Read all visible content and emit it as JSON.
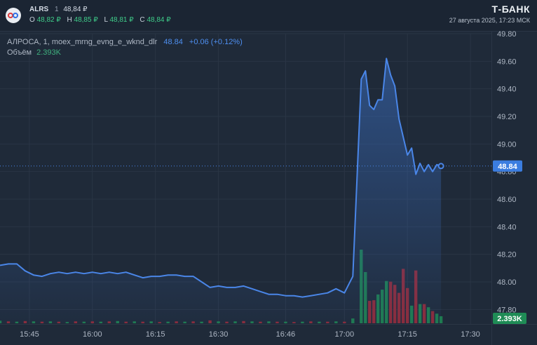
{
  "header": {
    "symbol": "ALRS",
    "interval": "1",
    "last_price": "48,84 ₽",
    "ohlc": [
      {
        "label": "O",
        "value": "48,82 ₽"
      },
      {
        "label": "H",
        "value": "48,85 ₽"
      },
      {
        "label": "L",
        "value": "48,81 ₽"
      },
      {
        "label": "C",
        "value": "48,84 ₽"
      }
    ],
    "brand": "Т-БАНК",
    "datetime": "27 августа 2025, 17:23 МСК"
  },
  "legend": {
    "series_title": "АЛРОСА, 1, moex_mrng_evng_e_wknd_dlr",
    "price": "48.84",
    "change": "+0.06 (+0.12%)",
    "volume_label": "Объём",
    "volume_value": "2.393K"
  },
  "colors": {
    "background": "#1f2a39",
    "line": "#4a86e8",
    "volume_up": "#1e7a4e",
    "volume_down": "#8c2a38",
    "price_tag": "#3b7de0",
    "volume_tag": "#1f8c56"
  },
  "chart_data": {
    "type": "area",
    "xlabel": "",
    "ylabel": "",
    "ylim": [
      47.7,
      49.8
    ],
    "yticks": [
      47.8,
      48.0,
      48.2,
      48.4,
      48.6,
      48.8,
      49.0,
      49.2,
      49.4,
      49.6,
      49.8
    ],
    "ytick_labels": [
      "47.80",
      "48.00",
      "48.20",
      "48.40",
      "48.60",
      "48.80",
      "49.00",
      "49.20",
      "49.40",
      "49.60",
      "49.80"
    ],
    "xlim": [
      "15:38",
      "17:35"
    ],
    "xticks": [
      "15:45",
      "16:00",
      "16:15",
      "16:30",
      "16:46",
      "17:00",
      "17:15",
      "17:30"
    ],
    "x": [
      "15:38",
      "15:40",
      "15:42",
      "15:44",
      "15:46",
      "15:48",
      "15:50",
      "15:52",
      "15:54",
      "15:56",
      "15:58",
      "16:00",
      "16:02",
      "16:04",
      "16:06",
      "16:08",
      "16:10",
      "16:12",
      "16:14",
      "16:16",
      "16:18",
      "16:20",
      "16:22",
      "16:24",
      "16:26",
      "16:28",
      "16:30",
      "16:32",
      "16:34",
      "16:36",
      "16:38",
      "16:40",
      "16:42",
      "16:44",
      "16:46",
      "16:48",
      "16:50",
      "16:52",
      "16:54",
      "16:56",
      "16:58",
      "17:00",
      "17:02",
      "17:04",
      "17:05",
      "17:06",
      "17:07",
      "17:08",
      "17:09",
      "17:10",
      "17:11",
      "17:12",
      "17:13",
      "17:14",
      "17:15",
      "17:16",
      "17:17",
      "17:18",
      "17:19",
      "17:20",
      "17:21",
      "17:22",
      "17:23"
    ],
    "series": [
      {
        "values": [
          48.12,
          48.13,
          48.13,
          48.08,
          48.05,
          48.04,
          48.06,
          48.07,
          48.06,
          48.07,
          48.06,
          48.07,
          48.06,
          48.07,
          48.06,
          48.07,
          48.05,
          48.03,
          48.04,
          48.04,
          48.05,
          48.05,
          48.04,
          48.04,
          48.0,
          47.96,
          47.97,
          47.96,
          47.96,
          47.97,
          47.95,
          47.93,
          47.91,
          47.91,
          47.9,
          47.9,
          47.89,
          47.9,
          47.91,
          47.92,
          47.95,
          47.92,
          48.04,
          49.47,
          49.53,
          49.28,
          49.25,
          49.32,
          49.32,
          49.62,
          49.5,
          49.42,
          49.18,
          49.05,
          48.92,
          48.97,
          48.78,
          48.86,
          48.8,
          48.85,
          48.8,
          48.85,
          48.84
        ]
      }
    ],
    "volume": {
      "values": [
        0.08,
        0.06,
        0.05,
        0.07,
        0.06,
        0.05,
        0.06,
        0.05,
        0.04,
        0.06,
        0.05,
        0.06,
        0.05,
        0.06,
        0.07,
        0.05,
        0.06,
        0.05,
        0.06,
        0.04,
        0.05,
        0.06,
        0.05,
        0.06,
        0.05,
        0.09,
        0.06,
        0.05,
        0.06,
        0.07,
        0.06,
        0.05,
        0.06,
        0.05,
        0.05,
        0.04,
        0.05,
        0.06,
        0.05,
        0.05,
        0.06,
        0.05,
        0.15,
        2.3,
        1.6,
        0.7,
        0.72,
        0.9,
        1.05,
        1.32,
        1.3,
        1.2,
        0.95,
        1.7,
        1.1,
        0.55,
        1.65,
        0.6,
        0.6,
        0.5,
        0.38,
        0.3,
        0.22
      ],
      "up": [
        1,
        0,
        1,
        0,
        1,
        0,
        1,
        0,
        1,
        0,
        1,
        0,
        1,
        0,
        1,
        0,
        1,
        0,
        1,
        0,
        1,
        0,
        1,
        0,
        1,
        0,
        1,
        0,
        1,
        0,
        1,
        0,
        1,
        0,
        1,
        0,
        1,
        0,
        1,
        0,
        1,
        0,
        1,
        1,
        1,
        0,
        0,
        1,
        1,
        1,
        0,
        0,
        0,
        0,
        0,
        1,
        0,
        1,
        0,
        1,
        0,
        1,
        1
      ]
    },
    "last_value_label": "48.84",
    "last_volume_label": "2.393K",
    "grid": true
  }
}
